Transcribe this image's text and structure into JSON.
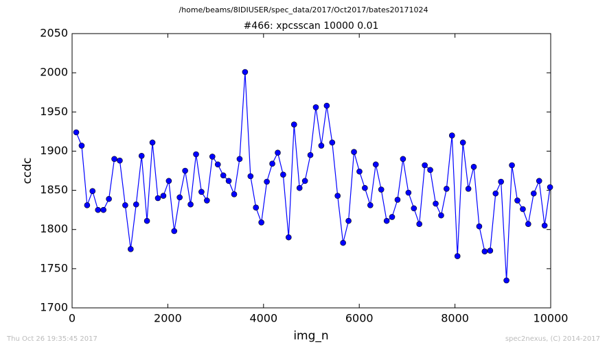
{
  "chart_data": {
    "type": "line",
    "suptitle": "/home/beams/8IDIUSER/spec_data/2017/Oct2017/bates20171024",
    "title": "#466: xpcsscan 10000 0.01",
    "x_label": "img_n",
    "y_label": "ccdc",
    "timestamp": "Thu Oct 26 19:35:45 2017",
    "credit": "spec2nexus, (C) 2014-2017",
    "xlim": [
      0,
      10000
    ],
    "xticks": [
      0,
      2000,
      4000,
      6000,
      8000,
      10000
    ],
    "ylim": [
      1700,
      2050
    ],
    "yticks": [
      1700,
      1750,
      1800,
      1850,
      1900,
      1950,
      2000,
      2050
    ],
    "grid": false,
    "x": [
      86,
      200,
      314,
      427,
      541,
      655,
      769,
      883,
      996,
      1110,
      1224,
      1338,
      1452,
      1565,
      1679,
      1793,
      1907,
      2021,
      2134,
      2248,
      2362,
      2476,
      2590,
      2703,
      2817,
      2931,
      3045,
      3159,
      3272,
      3386,
      3500,
      3614,
      3728,
      3841,
      3955,
      4069,
      4183,
      4297,
      4410,
      4524,
      4638,
      4752,
      4866,
      4979,
      5093,
      5207,
      5321,
      5435,
      5548,
      5662,
      5776,
      5890,
      6004,
      6117,
      6231,
      6345,
      6459,
      6573,
      6686,
      6800,
      6914,
      7028,
      7142,
      7255,
      7369,
      7483,
      7597,
      7711,
      7824,
      7938,
      8052,
      8166,
      8280,
      8393,
      8507,
      8621,
      8735,
      8849,
      8962,
      9076,
      9190,
      9304,
      9418,
      9531,
      9645,
      9759,
      9873,
      9987
    ],
    "series": [
      {
        "color": "#0000ff",
        "values": [
          1924,
          1907,
          1831,
          1849,
          1825,
          1825,
          1839,
          1890,
          1888,
          1831,
          1775,
          1832,
          1894,
          1811,
          1911,
          1840,
          1843,
          1862,
          1798,
          1841,
          1875,
          1832,
          1896,
          1848,
          1837,
          1893,
          1883,
          1869,
          1862,
          1845,
          1890,
          2001,
          1868,
          1828,
          1809,
          1861,
          1884,
          1898,
          1870,
          1790,
          1934,
          1853,
          1862,
          1895,
          1956,
          1907,
          1958,
          1911,
          1843,
          1783,
          1811,
          1899,
          1874,
          1853,
          1831,
          1883,
          1851,
          1811,
          1816,
          1838,
          1890,
          1847,
          1827,
          1807,
          1882,
          1876,
          1833,
          1818,
          1852,
          1920,
          1766,
          1911,
          1852,
          1880,
          1804,
          1772,
          1773,
          1846,
          1861,
          1735,
          1882,
          1837,
          1826,
          1807,
          1846,
          1862,
          1805,
          1854
        ]
      }
    ]
  }
}
